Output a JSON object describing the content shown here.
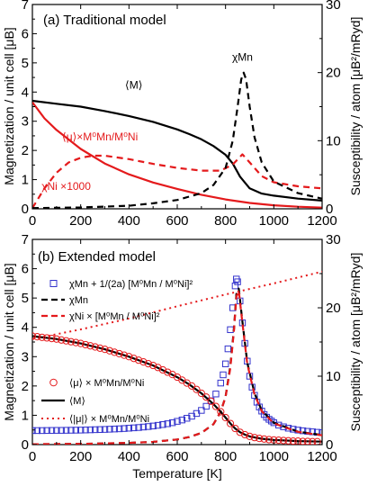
{
  "chart_data": [
    {
      "type": "line",
      "title": "(a) Traditional model",
      "xlabel": "",
      "ylabel": "Magnetization / unit cell [μB]",
      "y2label": "Susceptibility / atom [μB²/mRyd]",
      "xlim": [
        0,
        1200
      ],
      "ylim": [
        0,
        7
      ],
      "y2lim": [
        0,
        30
      ],
      "xticks": [
        "0",
        "200",
        "400",
        "600",
        "800",
        "1000",
        "1200"
      ],
      "yticks": [
        "0",
        "1",
        "2",
        "3",
        "4",
        "5",
        "6",
        "7"
      ],
      "y2ticks": [
        "0",
        "10",
        "20",
        "30"
      ],
      "annotations": [
        {
          "text": "⟨M⟩",
          "x": 420,
          "y": 4.12
        },
        {
          "text": "⟨μ⟩×M⁰Mn/M⁰Ni",
          "x": 280,
          "y": 2.35
        },
        {
          "text": "χNi ×1000",
          "x": 140,
          "y": 0.65
        },
        {
          "text": "χMn",
          "x": 870,
          "y": 5.08
        }
      ],
      "series": [
        {
          "label_key": "M",
          "color": "#000000",
          "dash": "",
          "axis": "left",
          "x": [
            0,
            100,
            200,
            300,
            400,
            500,
            600,
            650,
            700,
            750,
            800,
            830,
            860,
            900,
            950,
            1000,
            1100,
            1200
          ],
          "y": [
            3.7,
            3.6,
            3.5,
            3.35,
            3.18,
            2.98,
            2.72,
            2.56,
            2.38,
            2.15,
            1.85,
            1.55,
            1.1,
            0.7,
            0.52,
            0.45,
            0.35,
            0.28
          ]
        },
        {
          "label_key": "mu",
          "color": "#e41a1c",
          "dash": "",
          "axis": "left",
          "x": [
            0,
            50,
            100,
            200,
            300,
            400,
            500,
            600,
            700,
            800,
            900,
            1000,
            1100,
            1200
          ],
          "y": [
            3.65,
            3.1,
            2.7,
            2.05,
            1.55,
            1.18,
            0.9,
            0.68,
            0.48,
            0.32,
            0.2,
            0.12,
            0.07,
            0.04
          ]
        },
        {
          "label_key": "chiNi",
          "color": "#e41a1c",
          "dash": "7,5",
          "axis": "right",
          "x": [
            0,
            50,
            100,
            150,
            200,
            250,
            300,
            400,
            500,
            600,
            700,
            780,
            830,
            870,
            900,
            950,
            1000,
            1100,
            1200
          ],
          "y": [
            0.1,
            3.0,
            5.3,
            6.8,
            7.5,
            7.8,
            7.8,
            7.3,
            6.6,
            6.0,
            5.6,
            5.6,
            6.5,
            8.0,
            6.8,
            4.8,
            3.9,
            3.3,
            3.0
          ]
        },
        {
          "label_key": "chiMn",
          "color": "#000000",
          "dash": "7,5",
          "axis": "right",
          "x": [
            0,
            200,
            400,
            500,
            600,
            700,
            750,
            800,
            830,
            850,
            865,
            875,
            885,
            900,
            920,
            950,
            1000,
            1100,
            1200
          ],
          "y": [
            0.1,
            0.2,
            0.45,
            0.8,
            1.3,
            2.3,
            3.5,
            6.0,
            10.0,
            15.0,
            19.0,
            20.0,
            19.0,
            15.0,
            10.5,
            6.8,
            4.0,
            2.3,
            1.5
          ]
        }
      ]
    },
    {
      "type": "line",
      "title": "(b) Extended model",
      "xlabel": "Temperature [K]",
      "ylabel": "Magnetization / unit cell [μB]",
      "y2label": "Susceptibility / atom [μB²/mRyd]",
      "xlim": [
        0,
        1200
      ],
      "ylim": [
        0,
        7
      ],
      "y2lim": [
        0,
        30
      ],
      "xticks": [
        "0",
        "200",
        "400",
        "600",
        "800",
        "1000",
        "1200"
      ],
      "yticks": [
        "0",
        "1",
        "2",
        "3",
        "4",
        "5",
        "6",
        "7"
      ],
      "y2ticks": [
        "0",
        "10",
        "20",
        "30"
      ],
      "legend_top": [
        "χMn + 1/(2a) [M⁰Mn / M⁰Ni]²",
        "χMn",
        "χNi × [M⁰Mn / M⁰Ni]²"
      ],
      "legend_bottom": [
        "⟨μ⟩ × M⁰Mn/M⁰Ni",
        "⟨M⟩",
        "⟨|μ|⟩ × M⁰Mn/M⁰Ni"
      ],
      "series": [
        {
          "label_key": "chiMn_plus",
          "color": "#3333cc",
          "marker": "square",
          "axis": "right",
          "x": [
            0,
            20,
            40,
            60,
            80,
            100,
            120,
            140,
            160,
            180,
            200,
            220,
            240,
            260,
            280,
            300,
            320,
            340,
            360,
            380,
            400,
            420,
            440,
            460,
            480,
            500,
            520,
            540,
            560,
            580,
            600,
            620,
            640,
            660,
            680,
            700,
            720,
            740,
            760,
            780,
            790,
            800,
            810,
            820,
            830,
            840,
            845,
            850,
            860,
            870,
            880,
            890,
            900,
            910,
            920,
            930,
            940,
            950,
            960,
            970,
            980,
            990,
            1000,
            1020,
            1040,
            1060,
            1080,
            1100,
            1120,
            1140,
            1160,
            1180,
            1200
          ],
          "y": [
            2.05,
            2.05,
            2.05,
            2.06,
            2.07,
            2.08,
            2.08,
            2.09,
            2.1,
            2.11,
            2.12,
            2.14,
            2.16,
            2.18,
            2.2,
            2.22,
            2.25,
            2.28,
            2.31,
            2.35,
            2.4,
            2.45,
            2.5,
            2.57,
            2.64,
            2.72,
            2.82,
            2.93,
            3.05,
            3.2,
            3.4,
            3.6,
            3.85,
            4.15,
            4.55,
            5.0,
            5.6,
            6.4,
            7.4,
            9.0,
            10.2,
            11.8,
            14.0,
            16.8,
            20.0,
            23.2,
            24.2,
            23.8,
            21.0,
            17.8,
            14.8,
            12.2,
            10.0,
            8.4,
            7.2,
            6.2,
            5.5,
            4.9,
            4.4,
            4.0,
            3.7,
            3.45,
            3.2,
            2.85,
            2.6,
            2.4,
            2.25,
            2.12,
            2.02,
            1.94,
            1.87,
            1.8,
            1.75
          ]
        },
        {
          "label_key": "chiMn",
          "color": "#000000",
          "dash": "7,5",
          "axis": "right",
          "x": [
            0,
            200,
            400,
            500,
            600,
            650,
            700,
            750,
            780,
            800,
            820,
            835,
            845,
            855,
            870,
            890,
            920,
            950,
            1000,
            1100,
            1200
          ],
          "y": [
            0.05,
            0.1,
            0.25,
            0.4,
            0.75,
            1.1,
            1.7,
            3.0,
            4.8,
            7.0,
            11.5,
            17.0,
            22.0,
            22.8,
            18.0,
            12.0,
            7.5,
            5.0,
            3.2,
            1.9,
            1.4
          ]
        },
        {
          "label_key": "chiNi_scaled",
          "color": "#e41a1c",
          "dash": "7,5",
          "axis": "right",
          "x": [
            0,
            200,
            400,
            500,
            600,
            650,
            700,
            750,
            780,
            800,
            820,
            835,
            845,
            855,
            870,
            890,
            920,
            950,
            1000,
            1100,
            1200
          ],
          "y": [
            0.05,
            0.1,
            0.25,
            0.4,
            0.75,
            1.1,
            1.7,
            3.0,
            4.8,
            7.0,
            11.2,
            16.8,
            21.6,
            22.5,
            17.8,
            11.8,
            7.3,
            4.9,
            3.1,
            1.85,
            1.35
          ]
        },
        {
          "label_key": "abs_mu",
          "color": "#e41a1c",
          "dash": "2,4",
          "axis": "left",
          "x": [
            0,
            200,
            400,
            600,
            800,
            1000,
            1200
          ],
          "y": [
            3.6,
            3.93,
            4.3,
            4.72,
            5.12,
            5.5,
            5.9
          ]
        },
        {
          "label_key": "M",
          "color": "#000000",
          "dash": "",
          "axis": "left",
          "x": [
            0,
            100,
            200,
            300,
            400,
            500,
            600,
            650,
            700,
            750,
            780,
            800,
            820,
            840,
            860,
            880,
            900,
            950,
            1000,
            1100,
            1200
          ],
          "y": [
            3.7,
            3.6,
            3.45,
            3.25,
            3.0,
            2.7,
            2.3,
            2.05,
            1.75,
            1.38,
            1.12,
            0.92,
            0.72,
            0.55,
            0.42,
            0.34,
            0.28,
            0.2,
            0.16,
            0.12,
            0.1
          ]
        },
        {
          "label_key": "mu",
          "color": "#e41a1c",
          "marker": "circle",
          "axis": "left",
          "x": [
            0,
            20,
            40,
            60,
            80,
            100,
            120,
            140,
            160,
            180,
            200,
            220,
            240,
            260,
            280,
            300,
            320,
            340,
            360,
            380,
            400,
            420,
            440,
            460,
            480,
            500,
            520,
            540,
            560,
            580,
            600,
            620,
            640,
            660,
            680,
            700,
            720,
            740,
            760,
            780,
            800,
            820,
            840,
            860,
            880,
            900,
            920,
            940,
            960,
            980,
            1000,
            1020,
            1040,
            1060,
            1080,
            1100,
            1120,
            1140,
            1160,
            1180
          ],
          "y": [
            3.7,
            3.68,
            3.66,
            3.64,
            3.62,
            3.6,
            3.57,
            3.54,
            3.51,
            3.48,
            3.45,
            3.41,
            3.37,
            3.33,
            3.29,
            3.25,
            3.2,
            3.15,
            3.1,
            3.05,
            3.0,
            2.94,
            2.88,
            2.82,
            2.76,
            2.7,
            2.63,
            2.55,
            2.47,
            2.39,
            2.3,
            2.2,
            2.1,
            2.0,
            1.88,
            1.75,
            1.62,
            1.48,
            1.3,
            1.12,
            0.92,
            0.72,
            0.55,
            0.42,
            0.34,
            0.28,
            0.24,
            0.21,
            0.19,
            0.17,
            0.16,
            0.15,
            0.14,
            0.13,
            0.12,
            0.12,
            0.11,
            0.11,
            0.1,
            0.1
          ]
        }
      ]
    }
  ]
}
